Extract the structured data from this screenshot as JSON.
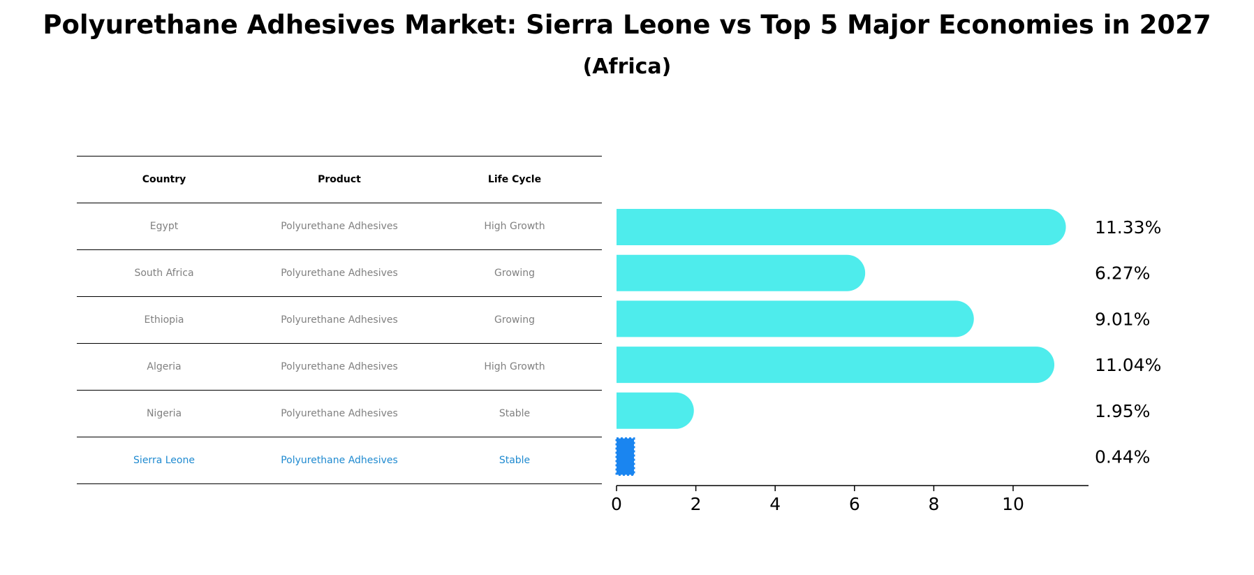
{
  "title": "Polyurethane Adhesives Market: Sierra Leone vs Top 5 Major Economies in 2027",
  "subtitle": "(Africa)",
  "table": {
    "headers": [
      "Country",
      "Product",
      "Life Cycle"
    ],
    "rows": [
      {
        "country": "Egypt",
        "product": "Polyurethane Adhesives",
        "life_cycle": "High Growth"
      },
      {
        "country": "South Africa",
        "product": "Polyurethane Adhesives",
        "life_cycle": "Growing"
      },
      {
        "country": "Ethiopia",
        "product": "Polyurethane Adhesives",
        "life_cycle": "Growing"
      },
      {
        "country": "Algeria",
        "product": "Polyurethane Adhesives",
        "life_cycle": "High Growth"
      },
      {
        "country": "Nigeria",
        "product": "Polyurethane Adhesives",
        "life_cycle": "Stable"
      },
      {
        "country": "Sierra Leone",
        "product": "Polyurethane Adhesives",
        "life_cycle": "Stable"
      }
    ],
    "highlight_color": "#1f8ad0",
    "text_color": "#808080"
  },
  "chart_data": {
    "type": "bar",
    "orientation": "horizontal",
    "categories": [
      "Egypt",
      "South Africa",
      "Ethiopia",
      "Algeria",
      "Nigeria",
      "Sierra Leone"
    ],
    "values": [
      11.33,
      6.27,
      9.01,
      11.04,
      1.95,
      0.44
    ],
    "value_labels": [
      "11.33%",
      "6.27%",
      "9.01%",
      "11.04%",
      "1.95%",
      "0.44%"
    ],
    "xlim": [
      0,
      11.9
    ],
    "xticks": [
      0,
      2,
      4,
      6,
      8,
      10
    ],
    "bar_color": "#4eecec",
    "highlight_color": "#1a85f0",
    "highlight_index": 5,
    "grid": false
  }
}
